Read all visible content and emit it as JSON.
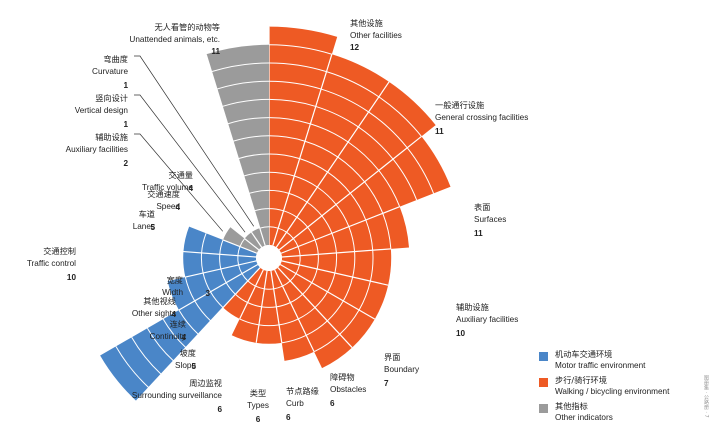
{
  "chart_data": {
    "type": "polar-bar",
    "title": "",
    "rmax": 12,
    "colors": {
      "motor": "#4a86c8",
      "walk": "#ee5a24",
      "other": "#9b9b9b"
    },
    "categories": [
      {
        "cn": "其他设施",
        "en": "Other facilities",
        "value": 12,
        "group": "walk"
      },
      {
        "cn": "一般通行设施",
        "en": "General crossing facilities",
        "value": 11,
        "group": "walk"
      },
      {
        "cn": "表面",
        "en": "Surfaces",
        "value": 11,
        "group": "walk"
      },
      {
        "cn": "辅助设施",
        "en": "Auxiliary facilities",
        "value": 10,
        "group": "walk"
      },
      {
        "cn": "界面",
        "en": "Boundary",
        "value": 7,
        "group": "walk"
      },
      {
        "cn": "障碍物",
        "en": "Obstacles",
        "value": 6,
        "group": "walk"
      },
      {
        "cn": "节点路缘",
        "en": "Curb",
        "value": 6,
        "group": "walk"
      },
      {
        "cn": "类型",
        "en": "Types",
        "value": 6,
        "group": "walk"
      },
      {
        "cn": "周边监视",
        "en": "Surrounding surveillance",
        "value": 6,
        "group": "walk"
      },
      {
        "cn": "坡度",
        "en": "Slope",
        "value": 5,
        "group": "walk"
      },
      {
        "cn": "连续",
        "en": "Continuity",
        "value": 4,
        "group": "walk"
      },
      {
        "cn": "其他视线",
        "en": "Other sights",
        "value": 4,
        "group": "walk"
      },
      {
        "cn": "宽度",
        "en": "Width",
        "value": 3,
        "group": "walk"
      },
      {
        "cn": "交通控制",
        "en": "Traffic control",
        "value": 10,
        "group": "motor"
      },
      {
        "cn": "车道",
        "en": "Lanes",
        "value": 5,
        "group": "motor"
      },
      {
        "cn": "交通速度",
        "en": "Speed",
        "value": 4,
        "group": "motor"
      },
      {
        "cn": "交通量",
        "en": "Traffic volume",
        "value": 4,
        "group": "motor"
      },
      {
        "cn": "辅助设施",
        "en": "Auxiliary facilities",
        "value": 2,
        "group": "other"
      },
      {
        "cn": "竖向设计",
        "en": "Vertical design",
        "value": 1,
        "group": "other"
      },
      {
        "cn": "弯曲度",
        "en": "Curvature",
        "value": 1,
        "group": "other"
      },
      {
        "cn": "无人看管的动物等",
        "en": "Unattended animals, etc.",
        "value": 11,
        "group": "other"
      }
    ],
    "legend": [
      {
        "group": "motor",
        "cn": "机动车交通环境",
        "en": "Motor traffic environment"
      },
      {
        "group": "walk",
        "cn": "步行/骑行环境",
        "en": "Walking / bicycling environment"
      },
      {
        "group": "other",
        "cn": "其他指标",
        "en": "Other indicators"
      }
    ],
    "legend_position": "bottom-right"
  },
  "side_note": "图册集 · 公路册 · 7"
}
